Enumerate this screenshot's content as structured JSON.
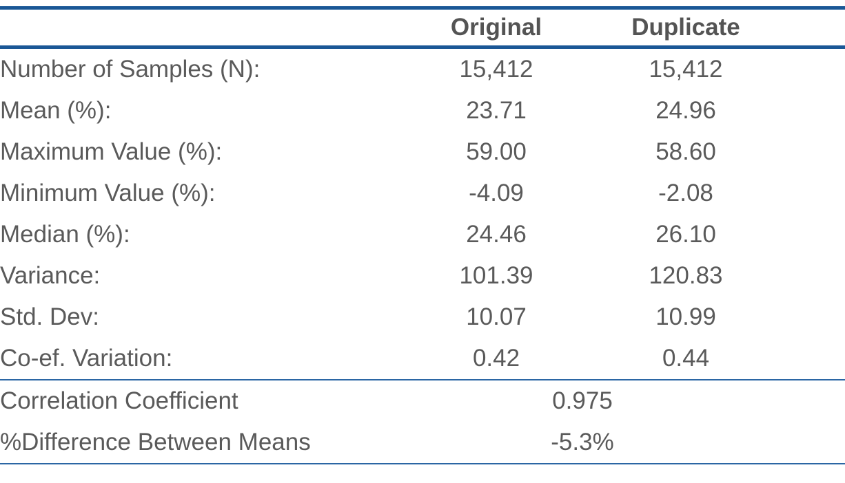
{
  "chart_data": {
    "type": "table",
    "columns": [
      "Original",
      "Duplicate"
    ],
    "rows": [
      {
        "label": "Number of Samples (N):",
        "original": "15,412",
        "duplicate": "15,412"
      },
      {
        "label": "Mean (%):",
        "original": "23.71",
        "duplicate": "24.96"
      },
      {
        "label": "Maximum Value (%):",
        "original": "59.00",
        "duplicate": "58.60"
      },
      {
        "label": "Minimum Value (%):",
        "original": "-4.09",
        "duplicate": "-2.08"
      },
      {
        "label": "Median (%):",
        "original": "24.46",
        "duplicate": "26.10"
      },
      {
        "label": "Variance:",
        "original": "101.39",
        "duplicate": "120.83"
      },
      {
        "label": "Std. Dev:",
        "original": "10.07",
        "duplicate": "10.99"
      },
      {
        "label": "Co-ef. Variation:",
        "original": "0.42",
        "duplicate": "0.44"
      }
    ],
    "summary_rows": [
      {
        "label": "Correlation Coefficient",
        "value": "0.975"
      },
      {
        "label": "%Difference Between Means",
        "value": "-5.3%"
      }
    ],
    "layout": {
      "grid": "off",
      "value_alignment": "center",
      "summary_values_span": "both data columns, centered"
    },
    "colors": {
      "accent_blue_thick_rule": "#1a5796",
      "accent_blue_thin_rule": "#2b66a4",
      "text_gray": "#5a5a5a"
    }
  }
}
